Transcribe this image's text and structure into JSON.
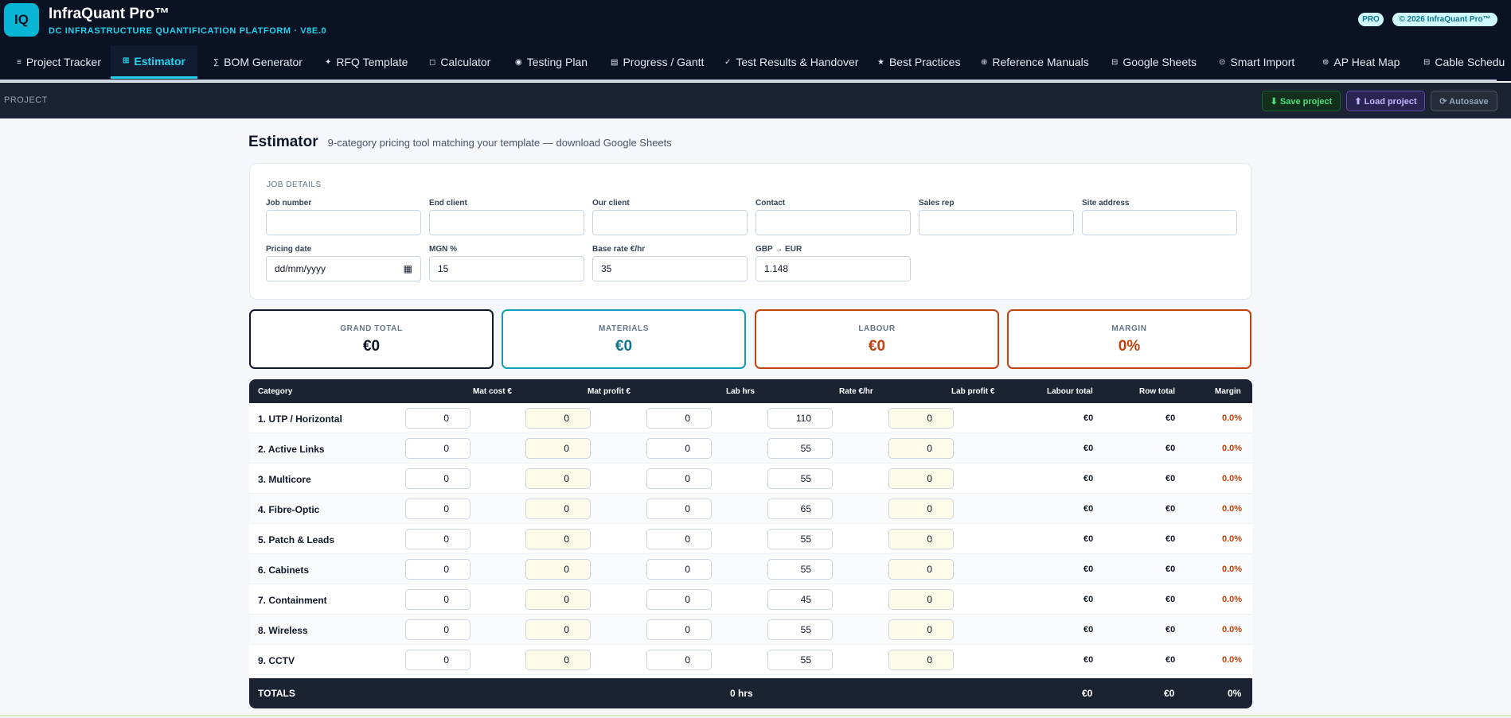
{
  "header": {
    "logo_text": "IQ",
    "title": "InfraQuant Pro™",
    "subtitle": "DC INFRASTRUCTURE QUANTIFICATION PLATFORM · V8E.0",
    "badges": [
      "PRO",
      "© 2026 InfraQuant Pro™"
    ]
  },
  "nav": {
    "tabs": [
      {
        "icon": "≡",
        "label": "Project Tracker"
      },
      {
        "icon": "⊞",
        "label": "Estimator"
      },
      {
        "icon": "∑",
        "label": "BOM Generator"
      },
      {
        "icon": "✦",
        "label": "RFQ Template"
      },
      {
        "icon": "◻",
        "label": "Calculator"
      },
      {
        "icon": "◉",
        "label": "Testing Plan"
      },
      {
        "icon": "▤",
        "label": "Progress / Gantt"
      },
      {
        "icon": "✓",
        "label": "Test Results & Handover"
      },
      {
        "icon": "★",
        "label": "Best Practices"
      },
      {
        "icon": "⊕",
        "label": "Reference Manuals"
      },
      {
        "icon": "⊟",
        "label": "Google Sheets"
      },
      {
        "icon": "⊙",
        "label": "Smart Import"
      },
      {
        "icon": "⊚",
        "label": "AP Heat Map"
      },
      {
        "icon": "⊟",
        "label": "Cable Schedu"
      }
    ],
    "active_tab": "Estimator"
  },
  "project_bar": {
    "label": "PROJECT",
    "save_label": "⬇ Save project",
    "load_label": "⬆ Load project",
    "autosave_label": "⟳ Autosave"
  },
  "page": {
    "title": "Estimator",
    "subtitle": "9-category pricing tool matching your template — download Google Sheets"
  },
  "job_details": {
    "title": "JOB DETAILS",
    "fields": {
      "job_number": {
        "label": "Job number",
        "value": ""
      },
      "end_client": {
        "label": "End client",
        "value": ""
      },
      "our_client": {
        "label": "Our client",
        "value": ""
      },
      "contact": {
        "label": "Contact",
        "value": ""
      },
      "sales_rep": {
        "label": "Sales rep",
        "value": ""
      },
      "site_address": {
        "label": "Site address",
        "value": ""
      },
      "pricing_date": {
        "label": "Pricing date",
        "value": "dd/mm/yyyy"
      },
      "mgn": {
        "label": "MGN %",
        "value": "15"
      },
      "base_rate": {
        "label": "Base rate €/hr",
        "value": "35"
      },
      "gbp_eur": {
        "label": "GBP → EUR",
        "value": "1.148"
      }
    }
  },
  "summary": {
    "grand_total": {
      "label": "GRAND TOTAL",
      "value": "€0"
    },
    "materials": {
      "label": "MATERIALS",
      "value": "€0"
    },
    "labour": {
      "label": "LABOUR",
      "value": "€0"
    },
    "margin": {
      "label": "MARGIN",
      "value": "0%"
    }
  },
  "colors": {
    "accent": "#22d3ee",
    "grand_total": "#0f172a",
    "materials": "#0e7490",
    "labour": "#c2410c",
    "margin": "#c2410c"
  },
  "table": {
    "headers": [
      "Category",
      "Mat cost €",
      "Mat profit €",
      "Lab hrs",
      "Rate €/hr",
      "Lab profit €",
      "Labour total",
      "Row total",
      "Margin"
    ],
    "rows": [
      {
        "name": "1. UTP / Horizontal",
        "mat_cost": "0",
        "mat_profit": "0",
        "lab_hrs": "0",
        "rate": "110",
        "lab_profit": "0",
        "labour_total": "€0",
        "row_total": "€0",
        "margin": "0.0%"
      },
      {
        "name": "2. Active Links",
        "mat_cost": "0",
        "mat_profit": "0",
        "lab_hrs": "0",
        "rate": "55",
        "lab_profit": "0",
        "labour_total": "€0",
        "row_total": "€0",
        "margin": "0.0%"
      },
      {
        "name": "3. Multicore",
        "mat_cost": "0",
        "mat_profit": "0",
        "lab_hrs": "0",
        "rate": "55",
        "lab_profit": "0",
        "labour_total": "€0",
        "row_total": "€0",
        "margin": "0.0%"
      },
      {
        "name": "4. Fibre-Optic",
        "mat_cost": "0",
        "mat_profit": "0",
        "lab_hrs": "0",
        "rate": "65",
        "lab_profit": "0",
        "labour_total": "€0",
        "row_total": "€0",
        "margin": "0.0%"
      },
      {
        "name": "5. Patch & Leads",
        "mat_cost": "0",
        "mat_profit": "0",
        "lab_hrs": "0",
        "rate": "55",
        "lab_profit": "0",
        "labour_total": "€0",
        "row_total": "€0",
        "margin": "0.0%"
      },
      {
        "name": "6. Cabinets",
        "mat_cost": "0",
        "mat_profit": "0",
        "lab_hrs": "0",
        "rate": "55",
        "lab_profit": "0",
        "labour_total": "€0",
        "row_total": "€0",
        "margin": "0.0%"
      },
      {
        "name": "7. Containment",
        "mat_cost": "0",
        "mat_profit": "0",
        "lab_hrs": "0",
        "rate": "45",
        "lab_profit": "0",
        "labour_total": "€0",
        "row_total": "€0",
        "margin": "0.0%"
      },
      {
        "name": "8. Wireless",
        "mat_cost": "0",
        "mat_profit": "0",
        "lab_hrs": "0",
        "rate": "55",
        "lab_profit": "0",
        "labour_total": "€0",
        "row_total": "€0",
        "margin": "0.0%"
      },
      {
        "name": "9. CCTV",
        "mat_cost": "0",
        "mat_profit": "0",
        "lab_hrs": "0",
        "rate": "55",
        "lab_profit": "0",
        "labour_total": "€0",
        "row_total": "€0",
        "margin": "0.0%"
      }
    ],
    "totals": {
      "label": "TOTALS",
      "hours": "0 hrs",
      "labour_total": "€0",
      "row_total": "€0",
      "margin": "0%"
    }
  }
}
